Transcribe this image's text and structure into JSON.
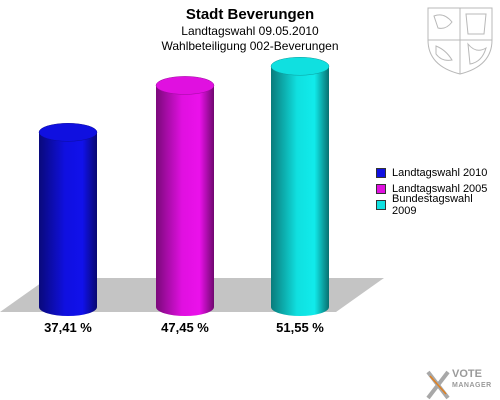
{
  "chart_data": {
    "type": "bar",
    "title": "Stadt Beverungen",
    "subtitle_1": "Landtagswahl 09.05.2010",
    "subtitle_2": "Wahlbeteiligung 002-Beverungen",
    "categories": [
      "Landtagswahl 2010",
      "Landtagswahl 2005",
      "Bundestagswahl 2009"
    ],
    "values": [
      37.41,
      47.45,
      51.55
    ],
    "value_labels": [
      "37,41 %",
      "47,45 %",
      "51,55 %"
    ],
    "colors": [
      "#1010e0",
      "#e010e0",
      "#10e0e0"
    ],
    "ylim": [
      0,
      55
    ],
    "grid": false,
    "legend_position": "right"
  },
  "legend": {
    "items": [
      {
        "label": "Landtagswahl 2010",
        "color": "#1010e0"
      },
      {
        "label": "Landtagswahl 2005",
        "color": "#e010e0"
      },
      {
        "label": "Bundestagswahl 2009",
        "color": "#10e0e0"
      }
    ]
  },
  "brand": {
    "line1": "VOTE",
    "line2": "MANAGER",
    "logo_icon": "vote-manager-x-icon"
  },
  "crest": {
    "icon": "coat-of-arms-icon"
  }
}
